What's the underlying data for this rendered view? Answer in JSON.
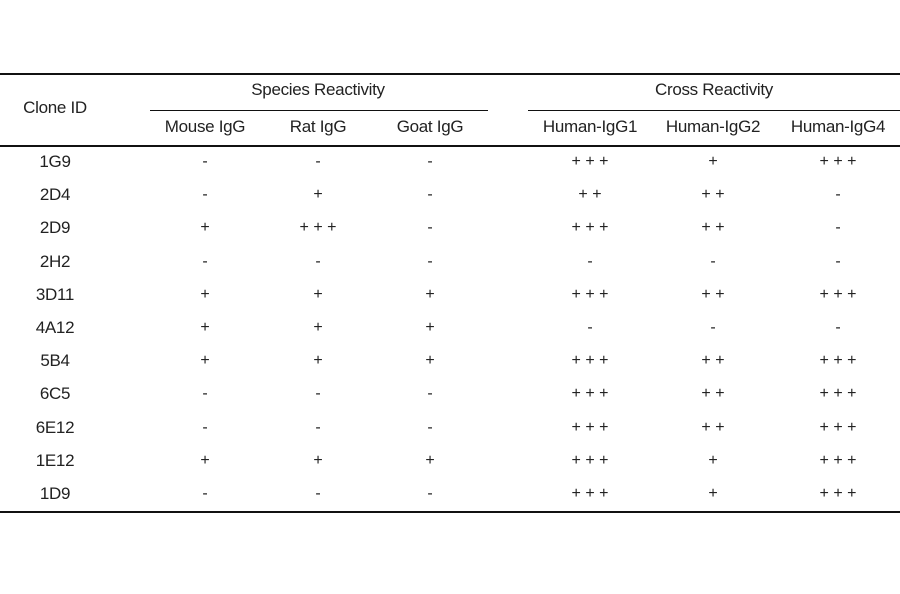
{
  "table": {
    "header": {
      "clone_id": "Clone ID",
      "groups": [
        "Species Reactivity",
        "Cross Reactivity"
      ],
      "columns": [
        "Mouse IgG",
        "Rat IgG",
        "Goat IgG",
        "Human-IgG1",
        "Human-IgG2",
        "Human-IgG4"
      ]
    },
    "rows": [
      {
        "id": "1G9",
        "values": [
          "-",
          "-",
          "-",
          "+ + +",
          "+",
          "+ + +"
        ]
      },
      {
        "id": "2D4",
        "values": [
          "-",
          "+",
          "-",
          "+ +",
          "+ +",
          "-"
        ]
      },
      {
        "id": "2D9",
        "values": [
          "+",
          "+ + +",
          "-",
          "+ + +",
          "+ +",
          "-"
        ]
      },
      {
        "id": "2H2",
        "values": [
          "-",
          "-",
          "-",
          "-",
          "-",
          "-"
        ]
      },
      {
        "id": "3D11",
        "values": [
          "+",
          "+",
          "+",
          "+ + +",
          "+ +",
          "+ + +"
        ]
      },
      {
        "id": "4A12",
        "values": [
          "+",
          "+",
          "+",
          "-",
          "-",
          "-"
        ]
      },
      {
        "id": "5B4",
        "values": [
          "+",
          "+",
          "+",
          "+ + +",
          "+ +",
          "+ + +"
        ]
      },
      {
        "id": "6C5",
        "values": [
          "-",
          "-",
          "-",
          "+ + +",
          "+ +",
          "+ + +"
        ]
      },
      {
        "id": "6E12",
        "values": [
          "-",
          "-",
          "-",
          "+ + +",
          "+ +",
          "+ + +"
        ]
      },
      {
        "id": "1E12",
        "values": [
          "+",
          "+",
          "+",
          "+ + +",
          "+",
          "+ + +"
        ]
      },
      {
        "id": "1D9",
        "values": [
          "-",
          "-",
          "-",
          "+ + +",
          "+",
          "+ + +"
        ]
      }
    ]
  }
}
